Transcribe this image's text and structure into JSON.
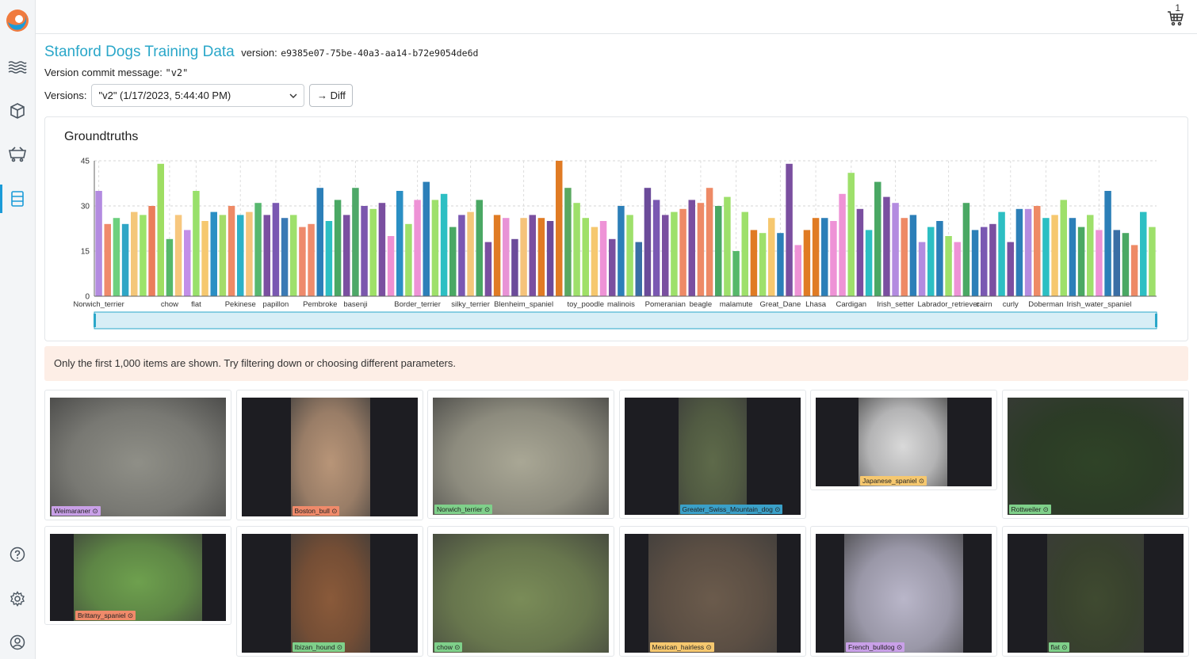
{
  "header": {
    "title": "Stanford Dogs Training Data",
    "version_label": "version:",
    "version_hash": "e9385e07-75be-40a3-aa14-b72e9054de6d",
    "commit_label": "Version commit message:",
    "commit_message": "\"v2\"",
    "versions_label": "Versions:",
    "versions_selected": "\"v2\" (1/17/2023, 5:44:40 PM)",
    "diff_label": "→ Diff",
    "cart_count": "1"
  },
  "notice": "Only the first 1,000 items are shown. Try filtering down or choosing different parameters.",
  "chart_data": {
    "type": "bar",
    "title": "Groundtruths",
    "ylim": [
      0,
      45
    ],
    "yticks": [
      0,
      15,
      30,
      45
    ],
    "grid": true,
    "xtick_labels": [
      {
        "i": 0,
        "label": "Norwich_terrier"
      },
      {
        "i": 8,
        "label": "chow"
      },
      {
        "i": 11,
        "label": "flat"
      },
      {
        "i": 16,
        "label": "Pekinese"
      },
      {
        "i": 20,
        "label": "papillon"
      },
      {
        "i": 25,
        "label": "Pembroke"
      },
      {
        "i": 29,
        "label": "basenji"
      },
      {
        "i": 36,
        "label": "Border_terrier"
      },
      {
        "i": 42,
        "label": "silky_terrier"
      },
      {
        "i": 48,
        "label": "Blenheim_spaniel"
      },
      {
        "i": 55,
        "label": "toy_poodle"
      },
      {
        "i": 59,
        "label": "malinois"
      },
      {
        "i": 64,
        "label": "Pomeranian"
      },
      {
        "i": 68,
        "label": "beagle"
      },
      {
        "i": 72,
        "label": "malamute"
      },
      {
        "i": 77,
        "label": "Great_Dane"
      },
      {
        "i": 81,
        "label": "Lhasa"
      },
      {
        "i": 85,
        "label": "Cardigan"
      },
      {
        "i": 90,
        "label": "Irish_setter"
      },
      {
        "i": 96,
        "label": "Labrador_retriever"
      },
      {
        "i": 100,
        "label": "cairn"
      },
      {
        "i": 103,
        "label": "curly"
      },
      {
        "i": 107,
        "label": "Doberman"
      },
      {
        "i": 113,
        "label": "Irish_water_spaniel"
      }
    ],
    "values": [
      35,
      24,
      26,
      24,
      28,
      27,
      30,
      44,
      19,
      27,
      22,
      35,
      25,
      28,
      27,
      30,
      27,
      28,
      31,
      27,
      31,
      26,
      27,
      23,
      24,
      36,
      25,
      32,
      27,
      36,
      30,
      29,
      31,
      20,
      35,
      24,
      32,
      38,
      32,
      34,
      23,
      27,
      28,
      32,
      18,
      27,
      26,
      19,
      26,
      27,
      26,
      25,
      45,
      36,
      31,
      26,
      23,
      25,
      19,
      30,
      27,
      18,
      36,
      32,
      27,
      28,
      29,
      32,
      31,
      36,
      30,
      33,
      15,
      28,
      22,
      21,
      26,
      21,
      44,
      17,
      22,
      26,
      26,
      25,
      34,
      41,
      29,
      22,
      38,
      33,
      31,
      26,
      27,
      18,
      23,
      25,
      20,
      18,
      31,
      22,
      23,
      24,
      28,
      18,
      29,
      29,
      30,
      26,
      27,
      32,
      26,
      23,
      27,
      22,
      35,
      22,
      21,
      17,
      28,
      23
    ],
    "colors": [
      "#b38be0",
      "#ef8a6c",
      "#6dd07e",
      "#2fa6c6",
      "#f4c77a",
      "#9be36a",
      "#eb7d5b",
      "#9ede63",
      "#56b86a",
      "#f7c77e",
      "#c28ee8",
      "#98e06b",
      "#f6c86f",
      "#2b8fc4",
      "#a4dc6a",
      "#ee8a66",
      "#2cb1c7",
      "#f6c57c",
      "#58b86f",
      "#7a4fa0",
      "#7a58b2",
      "#3a7ab5",
      "#9ee06b",
      "#ee8a6c",
      "#f08c6c",
      "#2c7fb8",
      "#2dbfc3",
      "#4aa864",
      "#7a4fa0",
      "#4ea868",
      "#7b57ad",
      "#9fe068",
      "#7a4fa0",
      "#ef91d2",
      "#2b8fc4",
      "#9ee06b",
      "#ee92d6",
      "#2c7fb8",
      "#9ee06b",
      "#2dbfc3",
      "#4aa864",
      "#7a58b2",
      "#f4c77a",
      "#4aa864",
      "#7a4fa0",
      "#e07b24",
      "#e893d6",
      "#6b4b9a",
      "#f5c37a",
      "#7a4fa0",
      "#e07b24",
      "#6b4b9a",
      "#e07b24",
      "#5aa860",
      "#9ee06b",
      "#9fe068",
      "#f6c86f",
      "#ee92d6",
      "#7a4fa0",
      "#2c7fb8",
      "#9ee06b",
      "#3a6ea5",
      "#6b4b9a",
      "#7a58b2",
      "#7a4fa0",
      "#9ee06b",
      "#ee8a66",
      "#7a4fa0",
      "#ee8a66",
      "#ee8a66",
      "#4aa864",
      "#9ee06b",
      "#56b86a",
      "#9ee06b",
      "#e07b24",
      "#9ee06b",
      "#f6c86f",
      "#2c7fb8",
      "#7a4fa0",
      "#ee92d6",
      "#e07b24",
      "#e07b24",
      "#2c7fb8",
      "#ee92d6",
      "#ee92d6",
      "#9ee06b",
      "#7a4fa0",
      "#2dbfc3",
      "#4aa864",
      "#7a4fa0",
      "#b38be0",
      "#ee8a66",
      "#2c7fb8",
      "#b38be0",
      "#2dbfc3",
      "#2c7fb8",
      "#9ee06b",
      "#ee92d6",
      "#4aa864",
      "#2c7fb8",
      "#7a58b2",
      "#7a4fa0",
      "#2dbfc3",
      "#7a4fa0",
      "#2c7fb8",
      "#b38be0",
      "#ee8a66",
      "#2dbfc3",
      "#f6c86f",
      "#9ee06b",
      "#2c7fb8",
      "#4aa864",
      "#9ee06b",
      "#ee92d6",
      "#2c7fb8",
      "#3a6ea5",
      "#4aa864",
      "#ee8a66",
      "#2dbfc3",
      "#9ee06b"
    ]
  },
  "tiles": [
    {
      "label": "Weimaraner",
      "color": "#c9a0e8",
      "bg": "#8f8f87",
      "photo_l": 0,
      "photo_w": 222
    },
    {
      "label": "Boston_bull",
      "color": "#f08a6a",
      "bg": "#b89578",
      "photo_l": 62,
      "photo_w": 100
    },
    {
      "label": "Norwich_terrier",
      "color": "#7fd08a",
      "bg": "#a9a795",
      "photo_l": 0,
      "photo_w": 222
    },
    {
      "label": "Greater_Swiss_Mountain_dog",
      "color": "#3aa0c8",
      "bg": "#5e6a4a",
      "photo_l": 68,
      "photo_w": 86
    },
    {
      "label": "Japanese_spaniel",
      "color": "#f6c86f",
      "bg": "#d9d9d9",
      "photo_l": 54,
      "photo_w": 112
    },
    {
      "label": "Rottweiler",
      "color": "#7fd08a",
      "bg": "#2f4327",
      "photo_l": 0,
      "photo_w": 222
    },
    {
      "label": "Brittany_spaniel",
      "color": "#f08a6a",
      "bg": "#6ea04e",
      "photo_l": 30,
      "photo_w": 162
    },
    {
      "label": "Ibizan_hound",
      "color": "#7fd08a",
      "bg": "#8a5a3a",
      "photo_l": 62,
      "photo_w": 100
    },
    {
      "label": "chow",
      "color": "#7fd08a",
      "bg": "#7a8c58",
      "photo_l": 0,
      "photo_w": 222
    },
    {
      "label": "Mexican_hairless",
      "color": "#f6c86f",
      "bg": "#6b5b4c",
      "photo_l": 30,
      "photo_w": 162
    },
    {
      "label": "French_bulldog",
      "color": "#c9a0e8",
      "bg": "#b9b6c9",
      "photo_l": 36,
      "photo_w": 150
    },
    {
      "label": "flat",
      "color": "#7fd08a",
      "bg": "#3f4a30",
      "photo_l": 50,
      "photo_w": 122
    }
  ],
  "colors": {
    "accent": "#2aa7c9",
    "brush_fill": "#d7eef6",
    "notice_bg": "#fdeee6"
  }
}
